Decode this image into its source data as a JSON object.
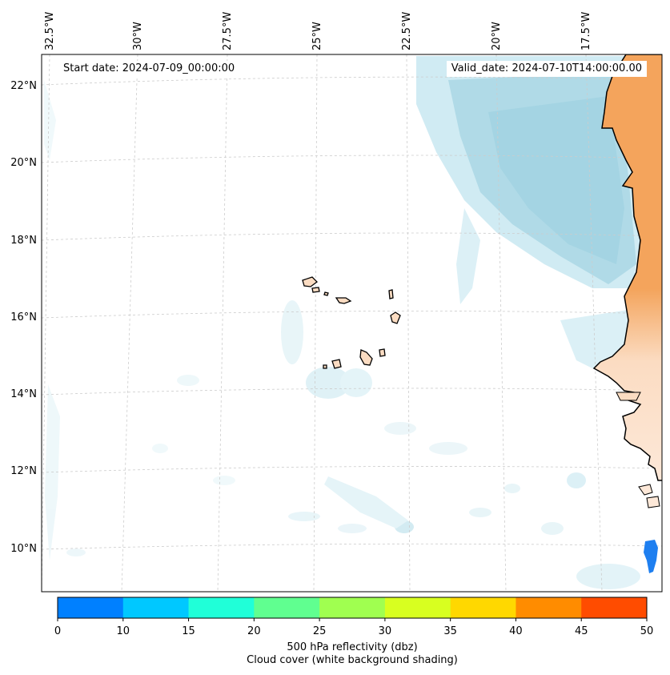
{
  "map": {
    "start_date": "Start date: 2024-07-09_00:00:00",
    "valid_date": "Valid_date: 2024-07-10T14:00:00.00",
    "lon_labels": [
      "32.5°W",
      "30°W",
      "27.5°W",
      "25°W",
      "22.5°W",
      "20°W",
      "17.5°W"
    ],
    "lat_labels": [
      "22°N",
      "20°N",
      "18°N",
      "16°N",
      "14°N",
      "12°N",
      "10°N"
    ],
    "colors": {
      "land": "#f4a45c",
      "land_light": "#fce2cc",
      "cloud": "#a9d8e6",
      "coast": "#000000",
      "grid": "#cccccc"
    }
  },
  "colorbar": {
    "ticks": [
      "0",
      "10",
      "15",
      "20",
      "25",
      "30",
      "35",
      "40",
      "45",
      "50"
    ],
    "colors": [
      "#0080ff",
      "#00c8ff",
      "#20ffd8",
      "#60ff90",
      "#a0ff50",
      "#d8ff20",
      "#ffd800",
      "#ff8c00",
      "#ff4c00"
    ],
    "label": "500 hPa reflectivity (dbz)",
    "sublabel": "Cloud cover (white background shading)"
  }
}
